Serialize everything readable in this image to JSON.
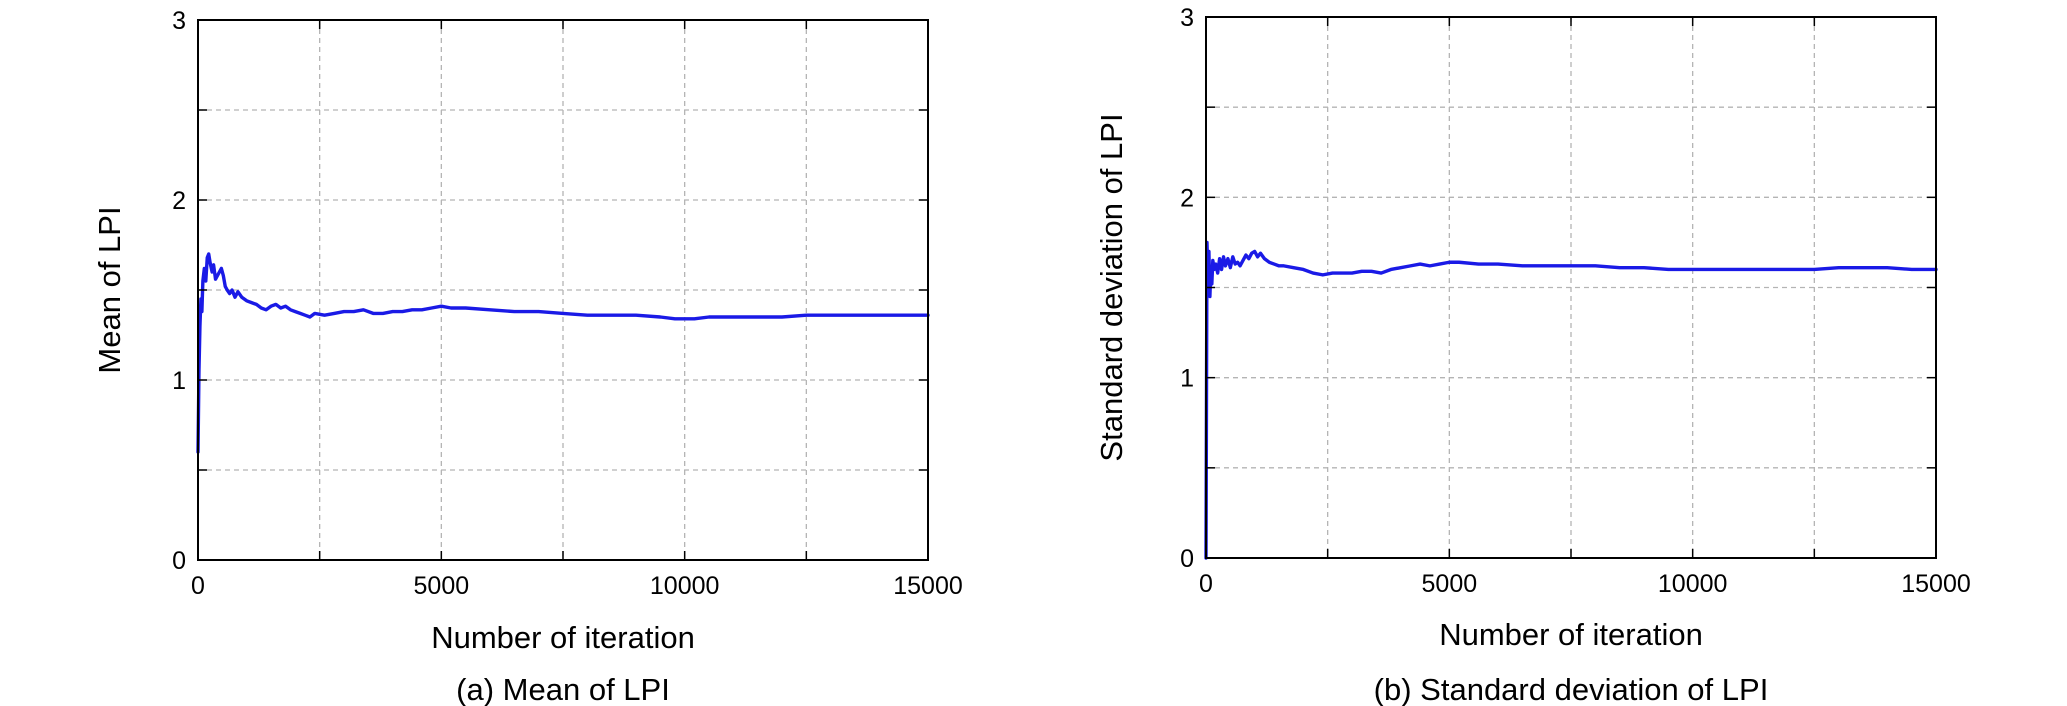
{
  "chart_data": [
    {
      "type": "line",
      "title": "",
      "caption": "(a) Mean of LPI",
      "xlabel": "Number of iteration",
      "ylabel": "Mean of LPI",
      "xlim": [
        0,
        15000
      ],
      "ylim": [
        0,
        3
      ],
      "xticks": [
        0,
        5000,
        10000,
        15000
      ],
      "yticks": [
        0,
        1,
        2,
        3
      ],
      "xminor_grid": [
        2500,
        7500,
        12500
      ],
      "yminor_grid": [
        0.5,
        1.5,
        2.5
      ],
      "grid": true,
      "legend": "none",
      "series": [
        {
          "color": "#1a1ae6",
          "points": [
            [
              0,
              0.6
            ],
            [
              20,
              1.05
            ],
            [
              40,
              1.3
            ],
            [
              60,
              1.45
            ],
            [
              80,
              1.38
            ],
            [
              100,
              1.55
            ],
            [
              130,
              1.62
            ],
            [
              160,
              1.55
            ],
            [
              190,
              1.68
            ],
            [
              220,
              1.7
            ],
            [
              250,
              1.65
            ],
            [
              290,
              1.6
            ],
            [
              320,
              1.64
            ],
            [
              360,
              1.56
            ],
            [
              400,
              1.58
            ],
            [
              440,
              1.6
            ],
            [
              480,
              1.62
            ],
            [
              520,
              1.58
            ],
            [
              560,
              1.52
            ],
            [
              600,
              1.5
            ],
            [
              650,
              1.48
            ],
            [
              700,
              1.5
            ],
            [
              760,
              1.46
            ],
            [
              820,
              1.49
            ],
            [
              900,
              1.46
            ],
            [
              1000,
              1.44
            ],
            [
              1100,
              1.43
            ],
            [
              1200,
              1.42
            ],
            [
              1300,
              1.4
            ],
            [
              1400,
              1.39
            ],
            [
              1500,
              1.41
            ],
            [
              1600,
              1.42
            ],
            [
              1700,
              1.4
            ],
            [
              1800,
              1.41
            ],
            [
              1900,
              1.39
            ],
            [
              2000,
              1.38
            ],
            [
              2100,
              1.37
            ],
            [
              2200,
              1.36
            ],
            [
              2300,
              1.35
            ],
            [
              2400,
              1.37
            ],
            [
              2600,
              1.36
            ],
            [
              2800,
              1.37
            ],
            [
              3000,
              1.38
            ],
            [
              3200,
              1.38
            ],
            [
              3400,
              1.39
            ],
            [
              3600,
              1.37
            ],
            [
              3800,
              1.37
            ],
            [
              4000,
              1.38
            ],
            [
              4200,
              1.38
            ],
            [
              4400,
              1.39
            ],
            [
              4600,
              1.39
            ],
            [
              4800,
              1.4
            ],
            [
              5000,
              1.41
            ],
            [
              5200,
              1.4
            ],
            [
              5500,
              1.4
            ],
            [
              6000,
              1.39
            ],
            [
              6500,
              1.38
            ],
            [
              7000,
              1.38
            ],
            [
              7500,
              1.37
            ],
            [
              8000,
              1.36
            ],
            [
              8500,
              1.36
            ],
            [
              9000,
              1.36
            ],
            [
              9500,
              1.35
            ],
            [
              9800,
              1.34
            ],
            [
              10000,
              1.34
            ],
            [
              10200,
              1.34
            ],
            [
              10500,
              1.35
            ],
            [
              11000,
              1.35
            ],
            [
              11500,
              1.35
            ],
            [
              12000,
              1.35
            ],
            [
              12500,
              1.36
            ],
            [
              13000,
              1.36
            ],
            [
              13500,
              1.36
            ],
            [
              14000,
              1.36
            ],
            [
              14500,
              1.36
            ],
            [
              15000,
              1.36
            ]
          ]
        }
      ]
    },
    {
      "type": "line",
      "title": "",
      "caption": "(b) Standard deviation of LPI",
      "xlabel": "Number of iteration",
      "ylabel": "Standard deviation of LPI",
      "xlim": [
        0,
        15000
      ],
      "ylim": [
        0,
        3
      ],
      "xticks": [
        0,
        5000,
        10000,
        15000
      ],
      "yticks": [
        0,
        1,
        2,
        3
      ],
      "xminor_grid": [
        2500,
        7500,
        12500
      ],
      "yminor_grid": [
        0.5,
        1.5,
        2.5
      ],
      "grid": true,
      "legend": "none",
      "series": [
        {
          "color": "#1a1ae6",
          "points": [
            [
              0,
              0.0
            ],
            [
              10,
              0.9
            ],
            [
              20,
              1.75
            ],
            [
              40,
              1.55
            ],
            [
              60,
              1.7
            ],
            [
              80,
              1.45
            ],
            [
              100,
              1.6
            ],
            [
              120,
              1.52
            ],
            [
              140,
              1.65
            ],
            [
              170,
              1.6
            ],
            [
              200,
              1.63
            ],
            [
              240,
              1.58
            ],
            [
              280,
              1.66
            ],
            [
              320,
              1.6
            ],
            [
              360,
              1.67
            ],
            [
              400,
              1.62
            ],
            [
              450,
              1.66
            ],
            [
              500,
              1.61
            ],
            [
              550,
              1.67
            ],
            [
              600,
              1.63
            ],
            [
              650,
              1.64
            ],
            [
              700,
              1.62
            ],
            [
              760,
              1.65
            ],
            [
              820,
              1.68
            ],
            [
              880,
              1.66
            ],
            [
              940,
              1.69
            ],
            [
              1000,
              1.7
            ],
            [
              1060,
              1.67
            ],
            [
              1120,
              1.69
            ],
            [
              1200,
              1.66
            ],
            [
              1300,
              1.64
            ],
            [
              1400,
              1.63
            ],
            [
              1500,
              1.62
            ],
            [
              1600,
              1.62
            ],
            [
              1800,
              1.61
            ],
            [
              2000,
              1.6
            ],
            [
              2200,
              1.58
            ],
            [
              2400,
              1.57
            ],
            [
              2600,
              1.58
            ],
            [
              2800,
              1.58
            ],
            [
              3000,
              1.58
            ],
            [
              3200,
              1.59
            ],
            [
              3400,
              1.59
            ],
            [
              3600,
              1.58
            ],
            [
              3800,
              1.6
            ],
            [
              4000,
              1.61
            ],
            [
              4200,
              1.62
            ],
            [
              4400,
              1.63
            ],
            [
              4600,
              1.62
            ],
            [
              4800,
              1.63
            ],
            [
              5000,
              1.64
            ],
            [
              5200,
              1.64
            ],
            [
              5600,
              1.63
            ],
            [
              6000,
              1.63
            ],
            [
              6500,
              1.62
            ],
            [
              7000,
              1.62
            ],
            [
              7500,
              1.62
            ],
            [
              8000,
              1.62
            ],
            [
              8500,
              1.61
            ],
            [
              9000,
              1.61
            ],
            [
              9500,
              1.6
            ],
            [
              10000,
              1.6
            ],
            [
              10500,
              1.6
            ],
            [
              11000,
              1.6
            ],
            [
              11500,
              1.6
            ],
            [
              12000,
              1.6
            ],
            [
              12500,
              1.6
            ],
            [
              13000,
              1.61
            ],
            [
              13500,
              1.61
            ],
            [
              14000,
              1.61
            ],
            [
              14500,
              1.6
            ],
            [
              15000,
              1.6
            ]
          ]
        }
      ]
    }
  ]
}
